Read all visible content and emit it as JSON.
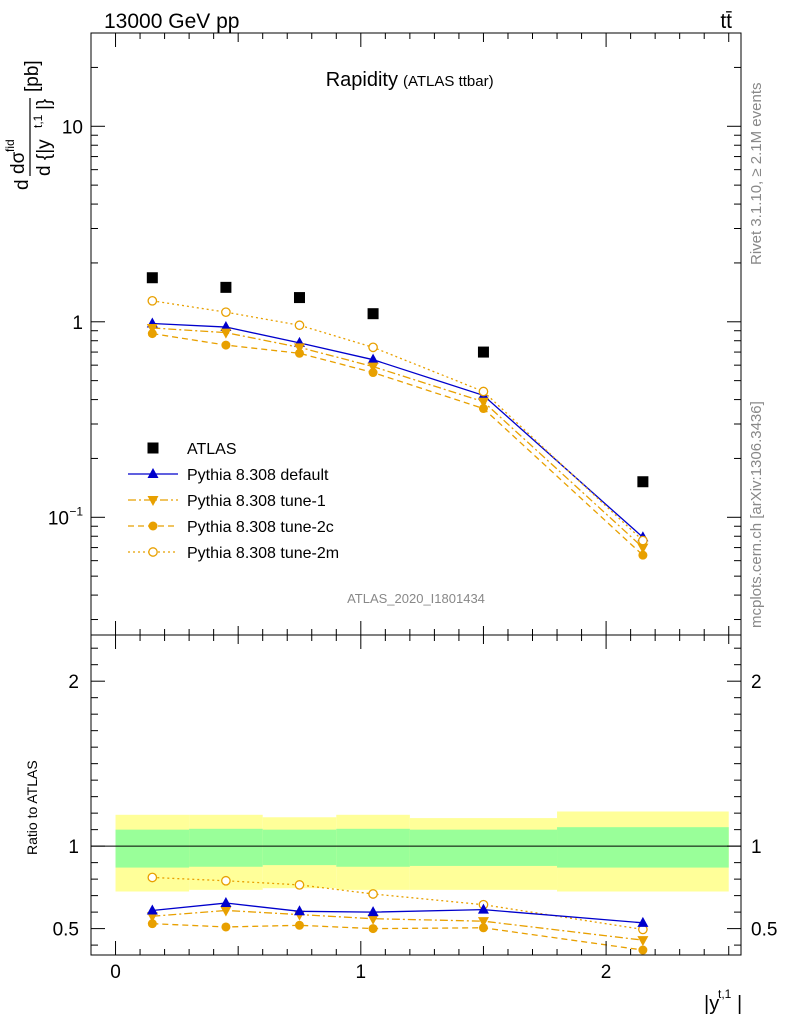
{
  "header": {
    "energy_label": "13000 GeV pp",
    "process_label": "tt̄"
  },
  "side_labels": {
    "rivet": "Rivet 3.1.10, ≥ 2.1M events",
    "mcplots": "mcplots.cern.ch [arXiv:1306.3436]"
  },
  "colors": {
    "atlas": "#000000",
    "default": "#0000cc",
    "tune": "#e8a000",
    "band_inner": "#99ff99",
    "band_outer": "#ffff99"
  },
  "chart_data": [
    {
      "type": "scatter",
      "title": "Rapidity",
      "subtitle": "(ATLAS ttbar)",
      "ylabel_num": "dσ",
      "ylabel_num_sup": "fid",
      "ylabel_den": "d {|y",
      "ylabel_den_sup": "t,1",
      "ylabel_den_tail": "|}",
      "ylabel_unit": "[pb]",
      "yscale": "log",
      "ylim": [
        0.025,
        30
      ],
      "xlim": [
        -0.1,
        2.55
      ],
      "yticks": [
        {
          "value": 0.1,
          "base": "10",
          "exp": "−1"
        },
        {
          "value": 1,
          "base": "1",
          "exp": ""
        },
        {
          "value": 10,
          "base": "10",
          "exp": ""
        }
      ],
      "watermark": "ATLAS_2020_I1801434",
      "legend_position": "lower-left",
      "x": [
        0.15,
        0.45,
        0.75,
        1.05,
        1.5,
        2.15
      ],
      "series": [
        {
          "name": "ATLAS",
          "marker": "square",
          "values": [
            1.68,
            1.5,
            1.33,
            1.1,
            0.7,
            0.152
          ]
        },
        {
          "name": "Pythia 8.308 default",
          "marker": "triangle-up",
          "line": "solid",
          "values": [
            0.98,
            0.94,
            0.78,
            0.64,
            0.42,
            0.079
          ]
        },
        {
          "name": "Pythia 8.308 tune-1",
          "marker": "triangle-down",
          "line": "dashdot",
          "values": [
            0.93,
            0.88,
            0.74,
            0.59,
            0.39,
            0.07
          ]
        },
        {
          "name": "Pythia 8.308 tune-2c",
          "marker": "circle",
          "line": "dashed",
          "values": [
            0.87,
            0.76,
            0.69,
            0.55,
            0.36,
            0.064
          ]
        },
        {
          "name": "Pythia 8.308 tune-2m",
          "marker": "circle-open",
          "line": "dotted",
          "values": [
            1.28,
            1.12,
            0.96,
            0.74,
            0.44,
            0.076
          ]
        }
      ]
    },
    {
      "type": "line",
      "ylabel": "Ratio to ATLAS",
      "xlabel": "|y",
      "xlabel_sup": "t,1",
      "xlabel_tail": "|",
      "ylim": [
        0.34,
        2.28
      ],
      "xlim": [
        -0.1,
        2.55
      ],
      "xticks": [
        0,
        1,
        2
      ],
      "yticks": [
        0.5,
        1,
        2
      ],
      "x": [
        0.15,
        0.45,
        0.75,
        1.05,
        1.5,
        2.15
      ],
      "bin_edges": [
        0.0,
        0.3,
        0.6,
        0.9,
        1.2,
        1.8,
        2.5
      ],
      "bands": {
        "inner_lower": [
          0.87,
          0.875,
          0.885,
          0.875,
          0.88,
          0.87
        ],
        "inner_upper": [
          1.1,
          1.105,
          1.1,
          1.105,
          1.1,
          1.115
        ],
        "outer_lower": [
          0.725,
          0.735,
          0.745,
          0.735,
          0.735,
          0.725
        ],
        "outer_upper": [
          1.19,
          1.19,
          1.175,
          1.19,
          1.17,
          1.21
        ]
      },
      "series": [
        {
          "name": "Pythia 8.308 default",
          "values": [
            0.61,
            0.655,
            0.605,
            0.6,
            0.615,
            0.535
          ]
        },
        {
          "name": "Pythia 8.308 tune-1",
          "values": [
            0.575,
            0.61,
            0.585,
            0.56,
            0.545,
            0.43
          ]
        },
        {
          "name": "Pythia 8.308 tune-2c",
          "values": [
            0.53,
            0.51,
            0.52,
            0.5,
            0.505,
            0.37
          ]
        },
        {
          "name": "Pythia 8.308 tune-2m",
          "values": [
            0.81,
            0.79,
            0.765,
            0.71,
            0.645,
            0.495
          ]
        }
      ]
    }
  ]
}
